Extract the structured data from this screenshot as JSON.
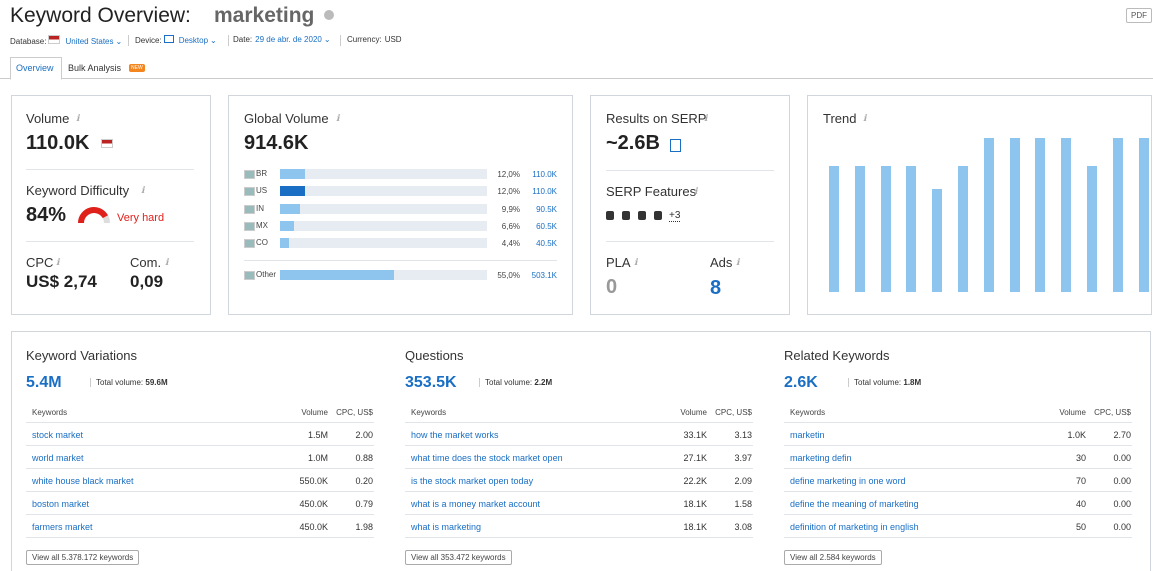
{
  "header": {
    "title": "Keyword Overview:",
    "keyword": "marketing",
    "pdf": "PDF"
  },
  "filters": [
    {
      "label": "Database:",
      "value": "United States"
    },
    {
      "label": "Device:",
      "value": "Desktop"
    },
    {
      "label": "Date:",
      "value": "29 de abr. de 2020"
    },
    {
      "label": "Currency:",
      "value": "USD"
    }
  ],
  "tabs": [
    {
      "label": "Overview"
    },
    {
      "label": "Bulk Analysis",
      "badge": "NEW"
    }
  ],
  "volume": {
    "label": "Volume",
    "value": "110.0K"
  },
  "difficulty": {
    "label": "Keyword Difficulty",
    "value": 84,
    "value_label": "84%",
    "level": "Very hard"
  },
  "cpc": {
    "label": "CPC",
    "value": "US$ 2,74"
  },
  "competition": {
    "label": "Com.",
    "value": "0,09"
  },
  "global_volume": {
    "label": "Global Volume",
    "value": "914.6K",
    "countries": [
      {
        "code": "BR",
        "share": 12.0,
        "share_label": "12,0%",
        "volume": "110.0K",
        "color": "#8ec5ee"
      },
      {
        "code": "US",
        "share": 12.0,
        "share_label": "12,0%",
        "volume": "110.0K",
        "color": "#1a6fc4"
      },
      {
        "code": "IN",
        "share": 9.9,
        "share_label": "9,9%",
        "volume": "90.5K",
        "color": "#8ec5ee"
      },
      {
        "code": "MX",
        "share": 6.6,
        "share_label": "6,6%",
        "volume": "60.5K",
        "color": "#8ec5ee"
      },
      {
        "code": "CO",
        "share": 4.4,
        "share_label": "4,4%",
        "volume": "40.5K",
        "color": "#8ec5ee"
      }
    ],
    "other": {
      "code": "Other",
      "share": 55.0,
      "share_label": "55,0%",
      "volume": "503.1K",
      "color": "#8ec5ee"
    }
  },
  "serp": {
    "label": "Results on SERP",
    "value": "~2.6B",
    "features_label": "SERP Features",
    "features_more": "+3",
    "pla_label": "PLA",
    "pla": "0",
    "ads_label": "Ads",
    "ads": "8"
  },
  "trend": {
    "label": "Trend",
    "values": [
      0.82,
      0.82,
      0.82,
      0.82,
      0.67,
      0.82,
      1,
      1,
      1,
      1,
      0.82,
      1,
      1
    ],
    "ylim": [
      0,
      1
    ],
    "color": "#8ec5ee"
  },
  "panels": [
    {
      "title": "Keyword Variations",
      "count": "5.4M",
      "total_label": "Total volume:",
      "total": "59.6M",
      "columns": [
        "Keywords",
        "Volume",
        "CPC, US$"
      ],
      "rows": [
        [
          "stock market",
          "1.5M",
          "2.00"
        ],
        [
          "world market",
          "1.0M",
          "0.88"
        ],
        [
          "white house black market",
          "550.0K",
          "0.20"
        ],
        [
          "boston market",
          "450.0K",
          "0.79"
        ],
        [
          "farmers market",
          "450.0K",
          "1.98"
        ]
      ],
      "button": "View all 5.378.172 keywords"
    },
    {
      "title": "Questions",
      "count": "353.5K",
      "total_label": "Total volume:",
      "total": "2.2M",
      "columns": [
        "Keywords",
        "Volume",
        "CPC, US$"
      ],
      "rows": [
        [
          "how the market works",
          "33.1K",
          "3.13"
        ],
        [
          "what time does the stock market open",
          "27.1K",
          "3.97"
        ],
        [
          "is the stock market open today",
          "22.2K",
          "2.09"
        ],
        [
          "what is a money market account",
          "18.1K",
          "1.58"
        ],
        [
          "what is marketing",
          "18.1K",
          "3.08"
        ]
      ],
      "button": "View all 353.472 keywords"
    },
    {
      "title": "Related Keywords",
      "count": "2.6K",
      "total_label": "Total volume:",
      "total": "1.8M",
      "columns": [
        "Keywords",
        "Volume",
        "CPC, US$"
      ],
      "rows": [
        [
          "marketin",
          "1.0K",
          "2.70"
        ],
        [
          "marketing defin",
          "30",
          "0.00"
        ],
        [
          "define marketing in one word",
          "70",
          "0.00"
        ],
        [
          "define the meaning of marketing",
          "40",
          "0.00"
        ],
        [
          "definition of marketing in english",
          "50",
          "0.00"
        ]
      ],
      "button": "View all 2.584 keywords"
    }
  ]
}
